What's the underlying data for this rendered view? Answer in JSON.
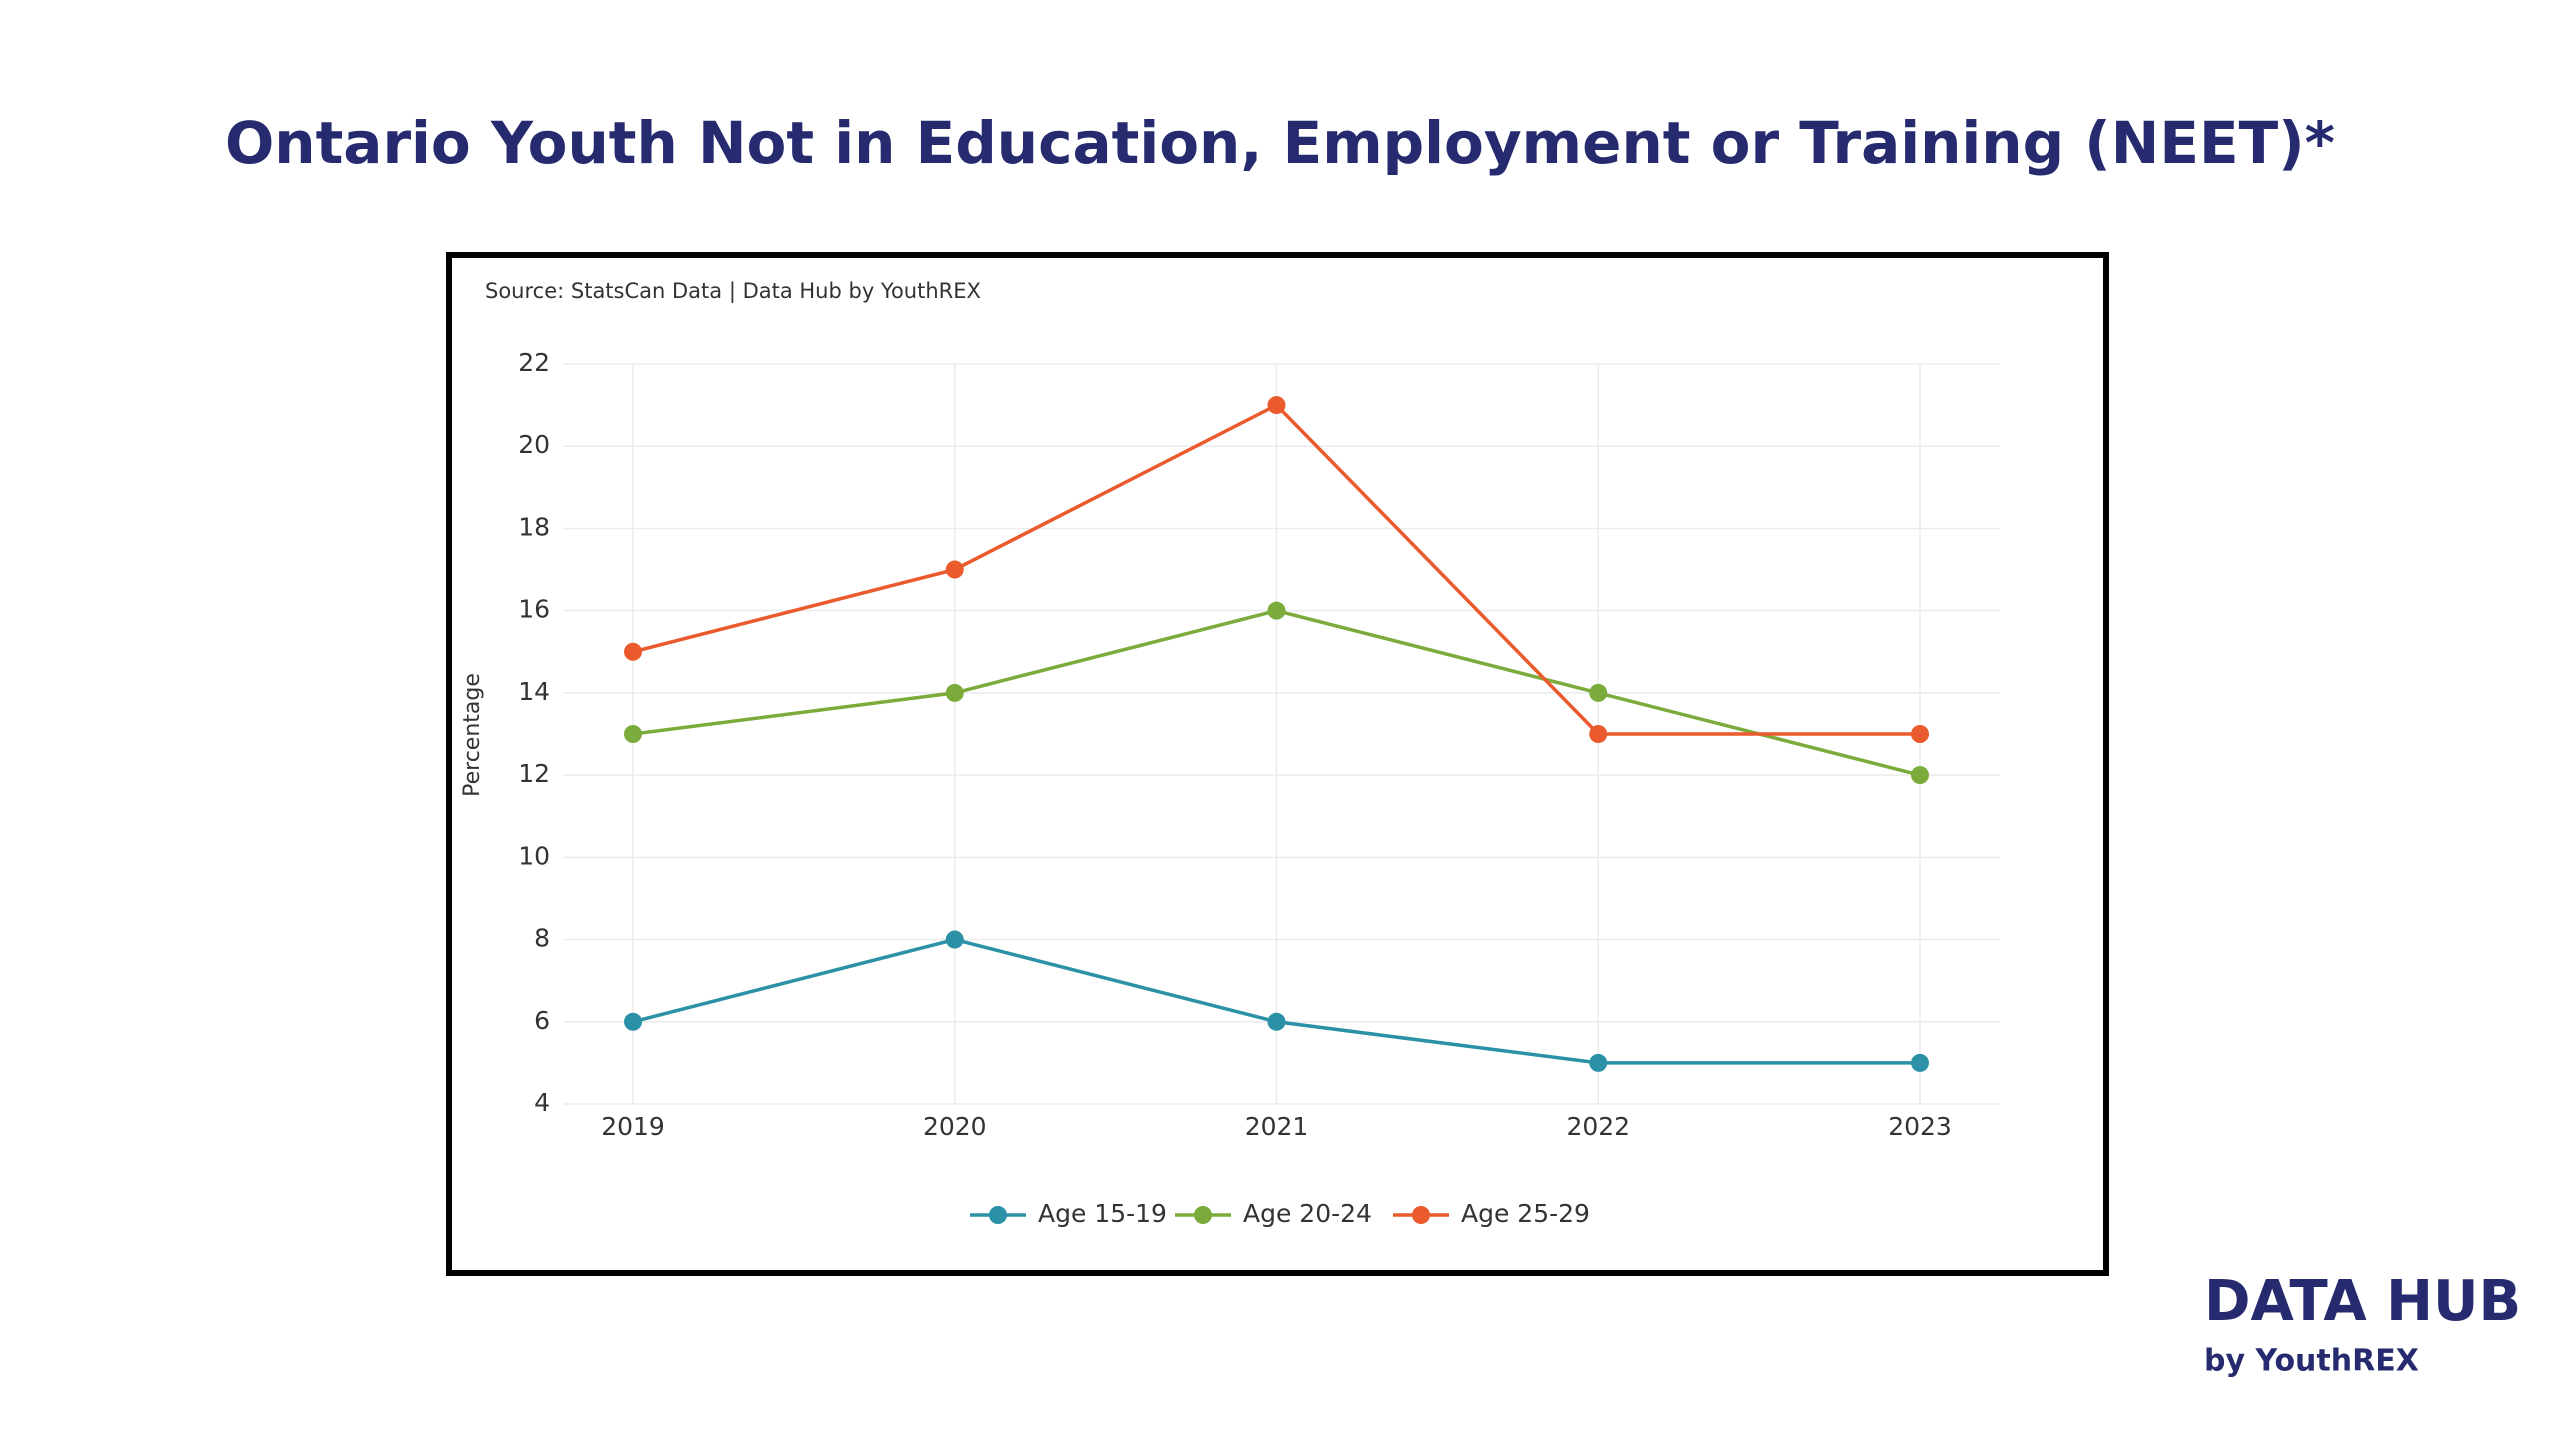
{
  "chart_data": {
    "type": "line",
    "title": "Ontario Youth Not in Education, Employment or Training (NEET)*",
    "subtitle": "Source: StatsCan Data | Data Hub by YouthREX",
    "y_label": "Percentage",
    "categories": [
      "2019",
      "2020",
      "2021",
      "2022",
      "2023"
    ],
    "series": [
      {
        "name": "Age 15-19",
        "color": "#2a91a6",
        "values": [
          6,
          8,
          6,
          5,
          5
        ]
      },
      {
        "name": "Age 20-24",
        "color": "#7aab3b",
        "values": [
          13,
          14,
          16,
          14,
          12
        ]
      },
      {
        "name": "Age 25-29",
        "color": "#ea5a2c",
        "values": [
          15,
          17,
          21,
          13,
          13
        ]
      }
    ],
    "ylim": [
      4,
      22
    ],
    "yticks": [
      4,
      6,
      8,
      10,
      12,
      14,
      16,
      18,
      20,
      22
    ],
    "grid": true,
    "legend": "bottom"
  },
  "logo": {
    "title": "DATA HUB",
    "subtitle": "by YouthREX"
  }
}
